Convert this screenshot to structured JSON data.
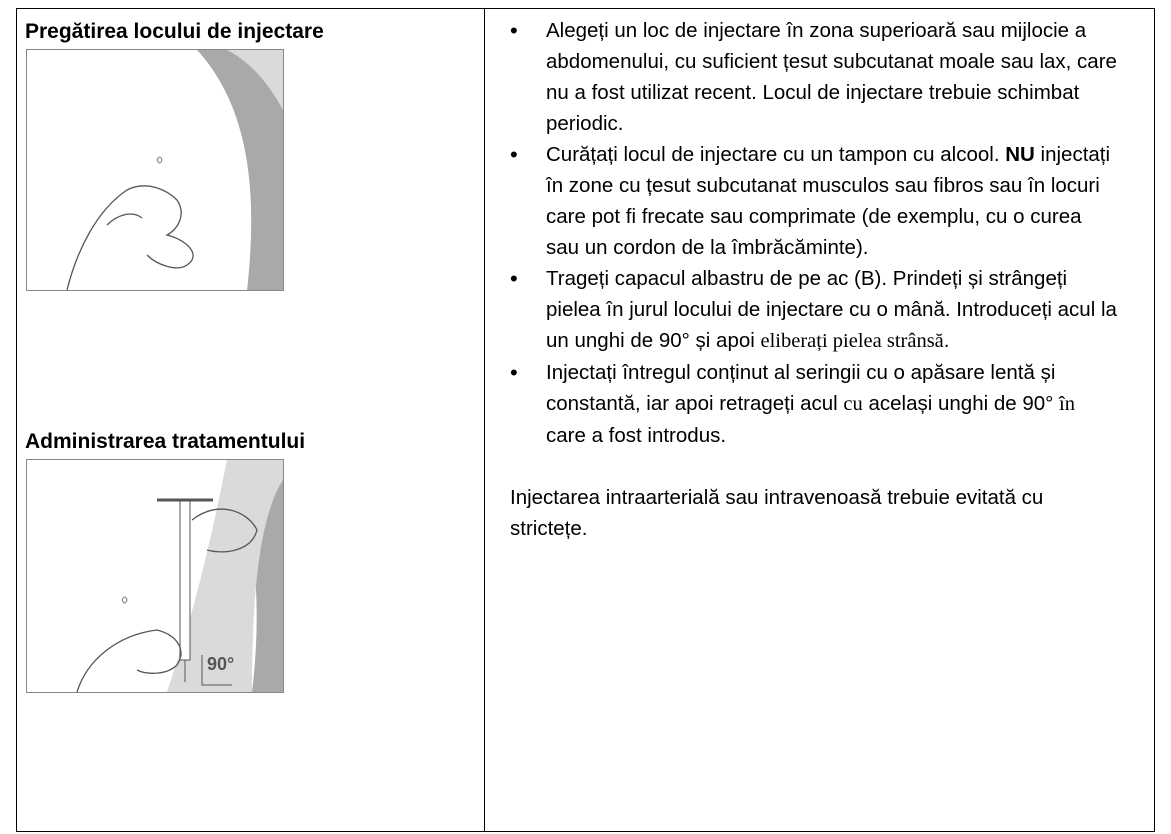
{
  "left": {
    "headings": [
      "Pregătirea locului de injectare",
      "Administrarea tratamentului"
    ],
    "figure_label": "90°"
  },
  "right": {
    "bullets": [
      [
        "Alegeți un loc de injectare în zona superioară sau mijlocie a abdomenului, cu suficient țesut subcutanat moale sau lax, care nu a fost utilizat recent. Locul de injectare trebuie schimbat periodic."
      ],
      [
        "Curățați locul de injectare cu un tampon cu alcool. ",
        "NU",
        " injectați în zone cu țesut subcutanat musculos sau fibros sau în locuri care pot fi frecate sau comprimate (de exemplu, cu o curea sau un cordon de la îmbrăcăminte)."
      ],
      [
        "Trageți capacul albastru de pe ac (B). Prindeți și strângeți pielea în jurul locului de injectare cu o mână. Introduceți acul la un unghi de 90° și apoi ",
        "eliberați pielea strânsă",
        "."
      ],
      [
        "Injectați întregul conținut al seringii cu o apăsare lentă și constantă, iar apoi retrageți acul ",
        "cu",
        " același unghi de 90° ",
        "în",
        " care a fost introdus."
      ]
    ],
    "note": "Injectarea intraarterială sau intravenoasă trebuie evitată cu strictețe."
  }
}
